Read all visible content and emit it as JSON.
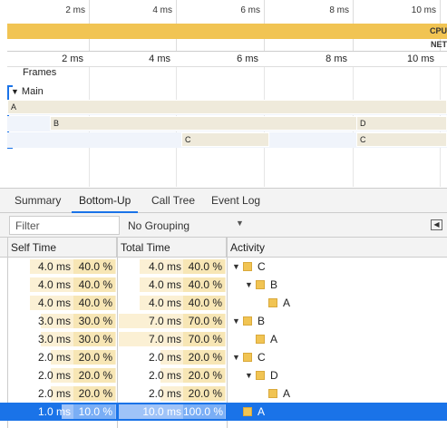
{
  "overview": {
    "ticks": [
      "2 ms",
      "4 ms",
      "6 ms",
      "8 ms",
      "10 ms"
    ],
    "cpu_label": "CPU",
    "net_label": "NET"
  },
  "ruler": {
    "ticks": [
      "2 ms",
      "4 ms",
      "6 ms",
      "8 ms",
      "10 ms"
    ]
  },
  "flame": {
    "frames_label": "Frames",
    "main_label": "Main",
    "bars": [
      "A",
      "B",
      "D",
      "C",
      "C"
    ]
  },
  "tabs": [
    "Summary",
    "Bottom-Up",
    "Call Tree",
    "Event Log"
  ],
  "active_tab": "Bottom-Up",
  "toolbar": {
    "filter_placeholder": "Filter",
    "grouping": "No Grouping",
    "panel_toggle": "◀"
  },
  "columns": {
    "self": "Self Time",
    "total": "Total Time",
    "activity": "Activity"
  },
  "rows": [
    {
      "self": "4.0 ms",
      "self_pct": "40.0 %",
      "self_frac": 0.4,
      "total": "4.0 ms",
      "total_pct": "40.0 %",
      "total_frac": 0.4,
      "name": "C",
      "depth": 0,
      "expander": "▼",
      "selected": false
    },
    {
      "self": "4.0 ms",
      "self_pct": "40.0 %",
      "self_frac": 0.4,
      "total": "4.0 ms",
      "total_pct": "40.0 %",
      "total_frac": 0.4,
      "name": "B",
      "depth": 1,
      "expander": "▼",
      "selected": false
    },
    {
      "self": "4.0 ms",
      "self_pct": "40.0 %",
      "self_frac": 0.4,
      "total": "4.0 ms",
      "total_pct": "40.0 %",
      "total_frac": 0.4,
      "name": "A",
      "depth": 2,
      "expander": "",
      "selected": false
    },
    {
      "self": "3.0 ms",
      "self_pct": "30.0 %",
      "self_frac": 0.3,
      "total": "7.0 ms",
      "total_pct": "70.0 %",
      "total_frac": 0.7,
      "name": "B",
      "depth": 0,
      "expander": "▼",
      "selected": false
    },
    {
      "self": "3.0 ms",
      "self_pct": "30.0 %",
      "self_frac": 0.3,
      "total": "7.0 ms",
      "total_pct": "70.0 %",
      "total_frac": 0.7,
      "name": "A",
      "depth": 1,
      "expander": "",
      "selected": false
    },
    {
      "self": "2.0 ms",
      "self_pct": "20.0 %",
      "self_frac": 0.2,
      "total": "2.0 ms",
      "total_pct": "20.0 %",
      "total_frac": 0.2,
      "name": "C",
      "depth": 0,
      "expander": "▼",
      "selected": false
    },
    {
      "self": "2.0 ms",
      "self_pct": "20.0 %",
      "self_frac": 0.2,
      "total": "2.0 ms",
      "total_pct": "20.0 %",
      "total_frac": 0.2,
      "name": "D",
      "depth": 1,
      "expander": "▼",
      "selected": false
    },
    {
      "self": "2.0 ms",
      "self_pct": "20.0 %",
      "self_frac": 0.2,
      "total": "2.0 ms",
      "total_pct": "20.0 %",
      "total_frac": 0.2,
      "name": "A",
      "depth": 2,
      "expander": "",
      "selected": false
    },
    {
      "self": "1.0 ms",
      "self_pct": "10.0 %",
      "self_frac": 0.1,
      "total": "10.0 ms",
      "total_pct": "100.0 %",
      "total_frac": 1.0,
      "name": "A",
      "depth": 0,
      "expander": "",
      "selected": true
    }
  ],
  "colors": {
    "accent": "#1a73e8",
    "activity": "#f1c453",
    "bar_bg": "#fbf0d4"
  }
}
